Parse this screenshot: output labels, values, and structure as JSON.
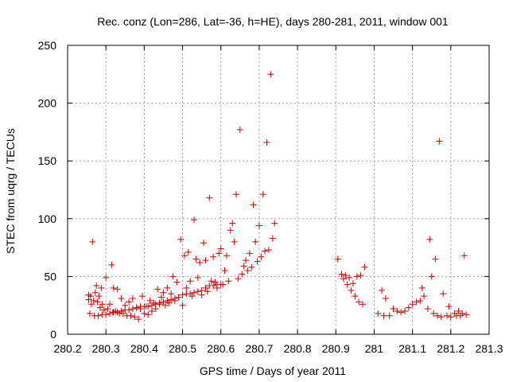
{
  "chart_data": {
    "type": "scatter",
    "title": "Rec. conz (Lon=286, Lat=-36, h=HE), days 280-281, 2011, window 001",
    "xlabel": "GPS time / Days of year 2011",
    "ylabel": "STEC from uqrg / TECUs",
    "xlim": [
      280.2,
      281.3
    ],
    "ylim": [
      0,
      250
    ],
    "x_ticks": [
      "280.2",
      "280.3",
      "280.4",
      "280.5",
      "280.6",
      "280.7",
      "280.8",
      "280.9",
      "281",
      "281.1",
      "281.2",
      "281.3"
    ],
    "y_ticks": [
      "0",
      "50",
      "100",
      "150",
      "200",
      "250"
    ],
    "x_tick_values": [
      280.2,
      280.3,
      280.4,
      280.5,
      280.6,
      280.7,
      280.8,
      280.9,
      281.0,
      281.1,
      281.2,
      281.3
    ],
    "y_tick_values": [
      0,
      50,
      100,
      150,
      200,
      250
    ],
    "grid": true,
    "marker": "+",
    "color": "#cc0000",
    "series": [
      {
        "points": [
          [
            280.255,
            34
          ],
          [
            280.255,
            30
          ],
          [
            280.258,
            18
          ],
          [
            280.26,
            33
          ],
          [
            280.262,
            26
          ],
          [
            280.265,
            80
          ],
          [
            280.268,
            29
          ],
          [
            280.272,
            36
          ],
          [
            280.275,
            42
          ],
          [
            280.278,
            28
          ],
          [
            280.282,
            33
          ],
          [
            280.285,
            23
          ],
          [
            280.288,
            40
          ],
          [
            280.29,
            26
          ],
          [
            280.295,
            21
          ],
          [
            280.3,
            49
          ],
          [
            280.305,
            22
          ],
          [
            280.31,
            26
          ],
          [
            280.315,
            60
          ],
          [
            280.318,
            19
          ],
          [
            280.32,
            40
          ],
          [
            280.325,
            20
          ],
          [
            280.33,
            39
          ],
          [
            280.335,
            18
          ],
          [
            280.34,
            31
          ],
          [
            280.345,
            18
          ],
          [
            280.35,
            25
          ],
          [
            280.355,
            16
          ],
          [
            280.36,
            28
          ],
          [
            280.365,
            16
          ],
          [
            280.37,
            31
          ],
          [
            280.375,
            15
          ],
          [
            280.38,
            23
          ],
          [
            280.385,
            13
          ],
          [
            280.39,
            22
          ],
          [
            280.395,
            33
          ],
          [
            280.4,
            18
          ],
          [
            280.405,
            24
          ],
          [
            280.41,
            17
          ],
          [
            280.415,
            29
          ],
          [
            280.42,
            20
          ],
          [
            280.425,
            27
          ],
          [
            280.43,
            22
          ],
          [
            280.435,
            39
          ],
          [
            280.44,
            26
          ],
          [
            280.445,
            32
          ],
          [
            280.45,
            36
          ],
          [
            280.455,
            25
          ],
          [
            280.46,
            40
          ],
          [
            280.465,
            27
          ],
          [
            280.47,
            35
          ],
          [
            280.475,
            50
          ],
          [
            280.48,
            29
          ],
          [
            280.485,
            45
          ],
          [
            280.49,
            32
          ],
          [
            280.495,
            82
          ],
          [
            280.5,
            25
          ],
          [
            280.505,
            68
          ],
          [
            280.51,
            40
          ],
          [
            280.515,
            71
          ],
          [
            280.52,
            46
          ],
          [
            280.525,
            33
          ],
          [
            280.53,
            99
          ],
          [
            280.535,
            65
          ],
          [
            280.54,
            49
          ],
          [
            280.545,
            62
          ],
          [
            280.55,
            34
          ],
          [
            280.555,
            79
          ],
          [
            280.56,
            64
          ],
          [
            280.565,
            37
          ],
          [
            280.57,
            118
          ],
          [
            280.575,
            46
          ],
          [
            280.58,
            67
          ],
          [
            280.585,
            45
          ],
          [
            280.59,
            40
          ],
          [
            280.595,
            70
          ],
          [
            280.6,
            74
          ],
          [
            280.605,
            43
          ],
          [
            280.61,
            55
          ],
          [
            280.615,
            68
          ],
          [
            280.62,
            46
          ],
          [
            280.625,
            90
          ],
          [
            280.63,
            96
          ],
          [
            280.635,
            80
          ],
          [
            280.64,
            121
          ],
          [
            280.645,
            48
          ],
          [
            280.65,
            177
          ],
          [
            280.655,
            52
          ],
          [
            280.66,
            59
          ],
          [
            280.665,
            64
          ],
          [
            280.67,
            55
          ],
          [
            280.675,
            70
          ],
          [
            280.68,
            58
          ],
          [
            280.685,
            112
          ],
          [
            280.69,
            80
          ],
          [
            280.695,
            63
          ],
          [
            280.7,
            94
          ],
          [
            280.705,
            67
          ],
          [
            280.71,
            121
          ],
          [
            280.715,
            72
          ],
          [
            280.72,
            166
          ],
          [
            280.725,
            73
          ],
          [
            280.73,
            225
          ],
          [
            280.735,
            83
          ],
          [
            280.74,
            96
          ],
          [
            280.27,
            16
          ],
          [
            280.28,
            16
          ],
          [
            280.29,
            17
          ],
          [
            280.3,
            17
          ],
          [
            280.31,
            18
          ],
          [
            280.32,
            19
          ],
          [
            280.33,
            19
          ],
          [
            280.34,
            20
          ],
          [
            280.35,
            21
          ],
          [
            280.36,
            21
          ],
          [
            280.37,
            22
          ],
          [
            280.38,
            23
          ],
          [
            280.39,
            24
          ],
          [
            280.4,
            24
          ],
          [
            280.41,
            24
          ],
          [
            280.42,
            25
          ],
          [
            280.43,
            26
          ],
          [
            280.44,
            27
          ],
          [
            280.45,
            28
          ],
          [
            280.46,
            29
          ],
          [
            280.47,
            30
          ],
          [
            280.48,
            31
          ],
          [
            280.49,
            32
          ],
          [
            280.5,
            34
          ],
          [
            280.51,
            35
          ],
          [
            280.52,
            35
          ],
          [
            280.53,
            36
          ],
          [
            280.54,
            37
          ],
          [
            280.55,
            38
          ],
          [
            280.56,
            40
          ],
          [
            280.57,
            42
          ],
          [
            280.58,
            42
          ],
          [
            280.59,
            43
          ],
          [
            280.6,
            43
          ],
          [
            280.905,
            65
          ],
          [
            280.915,
            52
          ],
          [
            280.92,
            48
          ],
          [
            280.925,
            51
          ],
          [
            280.93,
            43
          ],
          [
            280.935,
            49
          ],
          [
            280.94,
            38
          ],
          [
            280.945,
            44
          ],
          [
            280.95,
            33
          ],
          [
            280.955,
            50
          ],
          [
            280.96,
            28
          ],
          [
            280.965,
            51
          ],
          [
            280.97,
            26
          ],
          [
            280.975,
            58
          ],
          [
            281.01,
            18
          ],
          [
            281.02,
            38
          ],
          [
            281.025,
            16
          ],
          [
            281.03,
            31
          ],
          [
            281.04,
            16
          ],
          [
            281.05,
            22
          ],
          [
            281.06,
            20
          ],
          [
            281.07,
            19
          ],
          [
            281.08,
            20
          ],
          [
            281.09,
            23
          ],
          [
            281.1,
            26
          ],
          [
            281.11,
            28
          ],
          [
            281.12,
            29
          ],
          [
            281.125,
            40
          ],
          [
            281.13,
            33
          ],
          [
            281.14,
            22
          ],
          [
            281.145,
            82
          ],
          [
            281.15,
            50
          ],
          [
            281.155,
            18
          ],
          [
            281.16,
            65
          ],
          [
            281.165,
            16
          ],
          [
            281.17,
            167
          ],
          [
            281.175,
            15
          ],
          [
            281.18,
            35
          ],
          [
            281.19,
            16
          ],
          [
            281.195,
            24
          ],
          [
            281.2,
            15
          ],
          [
            281.21,
            18
          ],
          [
            281.215,
            16
          ],
          [
            281.22,
            20
          ],
          [
            281.225,
            16
          ],
          [
            281.23,
            18
          ],
          [
            281.235,
            68
          ],
          [
            281.24,
            17
          ]
        ]
      }
    ]
  }
}
